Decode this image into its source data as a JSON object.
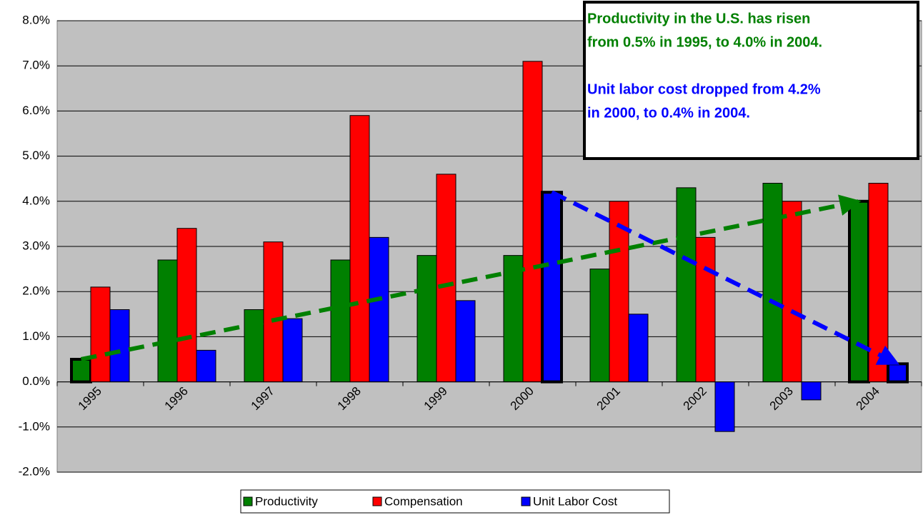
{
  "chart_data": {
    "type": "bar",
    "categories": [
      "1995",
      "1996",
      "1997",
      "1998",
      "1999",
      "2000",
      "2001",
      "2002",
      "2003",
      "2004"
    ],
    "series": [
      {
        "name": "Productivity",
        "color": "#008000",
        "values": [
          0.5,
          2.7,
          1.6,
          2.7,
          2.8,
          2.8,
          2.5,
          4.3,
          4.4,
          4.0
        ],
        "outlined": [
          true,
          false,
          false,
          false,
          false,
          false,
          false,
          false,
          false,
          true
        ]
      },
      {
        "name": "Compensation",
        "color": "#ff0000",
        "values": [
          2.1,
          3.4,
          3.1,
          5.9,
          4.6,
          7.1,
          4.0,
          3.2,
          4.0,
          4.4
        ],
        "outlined": [
          false,
          false,
          false,
          false,
          false,
          false,
          false,
          false,
          false,
          false
        ]
      },
      {
        "name": "Unit Labor Cost",
        "color": "#0000ff",
        "values": [
          1.6,
          0.7,
          1.4,
          3.2,
          1.8,
          4.2,
          1.5,
          -1.1,
          -0.4,
          0.4
        ],
        "outlined": [
          false,
          false,
          false,
          false,
          false,
          true,
          false,
          false,
          false,
          true
        ]
      }
    ],
    "ylim": [
      -2,
      8
    ],
    "yticks": [
      {
        "value": -2,
        "label": "-2.0%"
      },
      {
        "value": -1,
        "label": "-1.0%"
      },
      {
        "value": 0,
        "label": "0.0%"
      },
      {
        "value": 1,
        "label": "1.0%"
      },
      {
        "value": 2,
        "label": "2.0%"
      },
      {
        "value": 3,
        "label": "3.0%"
      },
      {
        "value": 4,
        "label": "4.0%"
      },
      {
        "value": 5,
        "label": "5.0%"
      },
      {
        "value": 6,
        "label": "6.0%"
      },
      {
        "value": 7,
        "label": "7.0%"
      },
      {
        "value": 8,
        "label": "8.0%"
      }
    ],
    "grid": true,
    "legend": "bottom",
    "annotations": [
      {
        "color": "#008000",
        "lines": [
          "Productivity in the U.S. has risen",
          "from 0.5% in 1995, to 4.0% in 2004."
        ]
      },
      {
        "color": "#0000ff",
        "lines": [
          "Unit labor cost dropped from 4.2%",
          "in 2000, to 0.4% in 2004."
        ]
      }
    ]
  }
}
